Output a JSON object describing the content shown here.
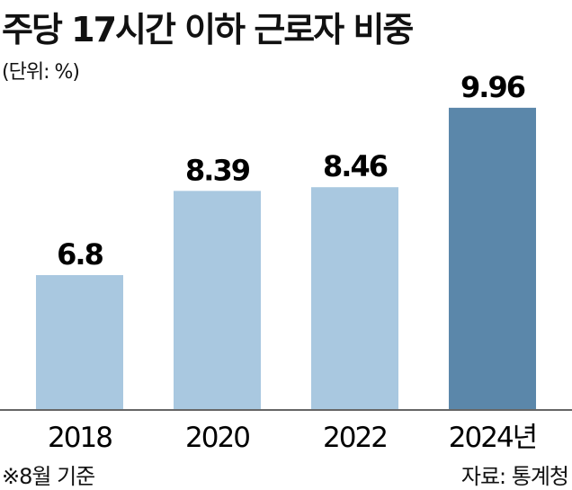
{
  "chart_data": {
    "type": "bar",
    "title": "주당 17시간 이하 근로자 비중",
    "unit_label": "(단위: %)",
    "categories": [
      "2018",
      "2020",
      "2022",
      "2024년"
    ],
    "values": [
      6.8,
      8.39,
      8.46,
      9.96
    ],
    "data_labels": [
      "6.8",
      "8.39",
      "8.46",
      "9.96"
    ],
    "ylim": [
      4.27,
      10.5
    ],
    "grid": false,
    "colors": {
      "default": "#a9c8e0",
      "highlight": "#5b87aa",
      "baseline": "#666666"
    },
    "highlight_index": 3,
    "footnote": "※8월 기준",
    "source": "자료: 통계청"
  }
}
